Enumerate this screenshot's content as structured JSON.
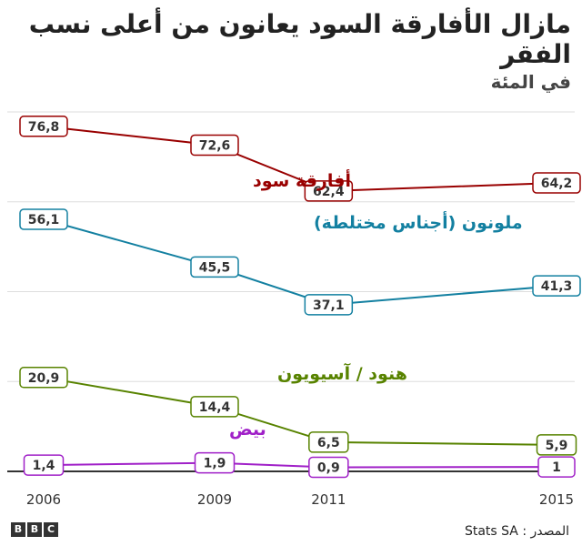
{
  "header": {
    "title": "مازال الأفارقة السود يعانون من أعلى نسب الفقر",
    "subtitle": "في المئة"
  },
  "footer": {
    "source": "المصدر : Stats SA",
    "logo_letters": [
      "B",
      "B",
      "C"
    ]
  },
  "chart_data": {
    "type": "line",
    "x": [
      "2006",
      "2009",
      "2011",
      "2015"
    ],
    "x_numeric": [
      2006,
      2009,
      2011,
      2015
    ],
    "xlim": [
      2006,
      2015
    ],
    "ylim": [
      0,
      80
    ],
    "grid": true,
    "series": [
      {
        "name": "أفارقة سود",
        "color": "#990000",
        "values": [
          76.8,
          72.6,
          62.4,
          64.2
        ],
        "labels": [
          "76,8",
          "72,6",
          "62,4",
          "64,2"
        ]
      },
      {
        "name": "ملونون (أجناس مختلطة)",
        "color": "#1380A1",
        "values": [
          56.1,
          45.5,
          37.1,
          41.3
        ],
        "labels": [
          "56,1",
          "45,5",
          "37,1",
          "41,3"
        ]
      },
      {
        "name": "هنود / آسيويون",
        "color": "#588300",
        "values": [
          20.9,
          14.4,
          6.5,
          5.9
        ],
        "labels": [
          "20,9",
          "14,4",
          "6,5",
          "5,9"
        ]
      },
      {
        "name": "بيض",
        "color": "#A020C8",
        "values": [
          1.4,
          1.9,
          0.9,
          1.0
        ],
        "labels": [
          "1,4",
          "1,9",
          "0,9",
          "1"
        ]
      }
    ]
  }
}
